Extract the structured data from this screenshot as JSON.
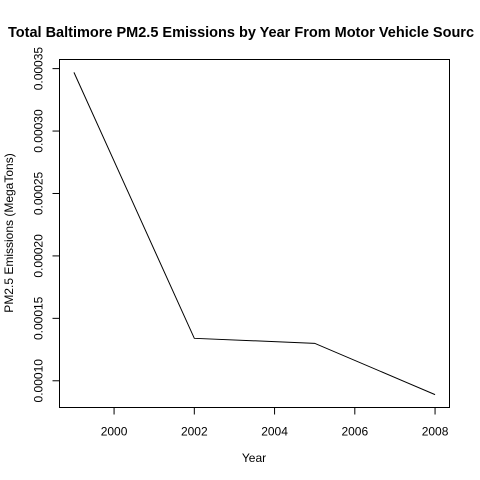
{
  "chart_data": {
    "type": "line",
    "title": "Total Baltimore PM2.5 Emissions by Year From Motor Vehicle Sourc",
    "xlabel": "Year",
    "ylabel": "PM2.5 Emissions (MegaTons)",
    "x": [
      1999,
      2002,
      2005,
      2008
    ],
    "series": [
      {
        "values": [
          0.000347,
          0.000134,
          0.00013,
          8.89e-05
        ]
      }
    ],
    "xlim": [
      1998.64,
      2008.36
    ],
    "ylim": [
      7.86e-05,
      0.0003573
    ],
    "xticks": [
      {
        "value": 2000,
        "label": "2000"
      },
      {
        "value": 2002,
        "label": "2002"
      },
      {
        "value": 2004,
        "label": "2004"
      },
      {
        "value": 2006,
        "label": "2006"
      },
      {
        "value": 2008,
        "label": "2008"
      }
    ],
    "yticks": [
      {
        "value": 0.0001,
        "label": "0.00010"
      },
      {
        "value": 0.00015,
        "label": "0.00015"
      },
      {
        "value": 0.0002,
        "label": "0.00020"
      },
      {
        "value": 0.00025,
        "label": "0.00025"
      },
      {
        "value": 0.0003,
        "label": "0.00030"
      },
      {
        "value": 0.00035,
        "label": "0.00035"
      }
    ],
    "grid": false,
    "legend": "none"
  }
}
